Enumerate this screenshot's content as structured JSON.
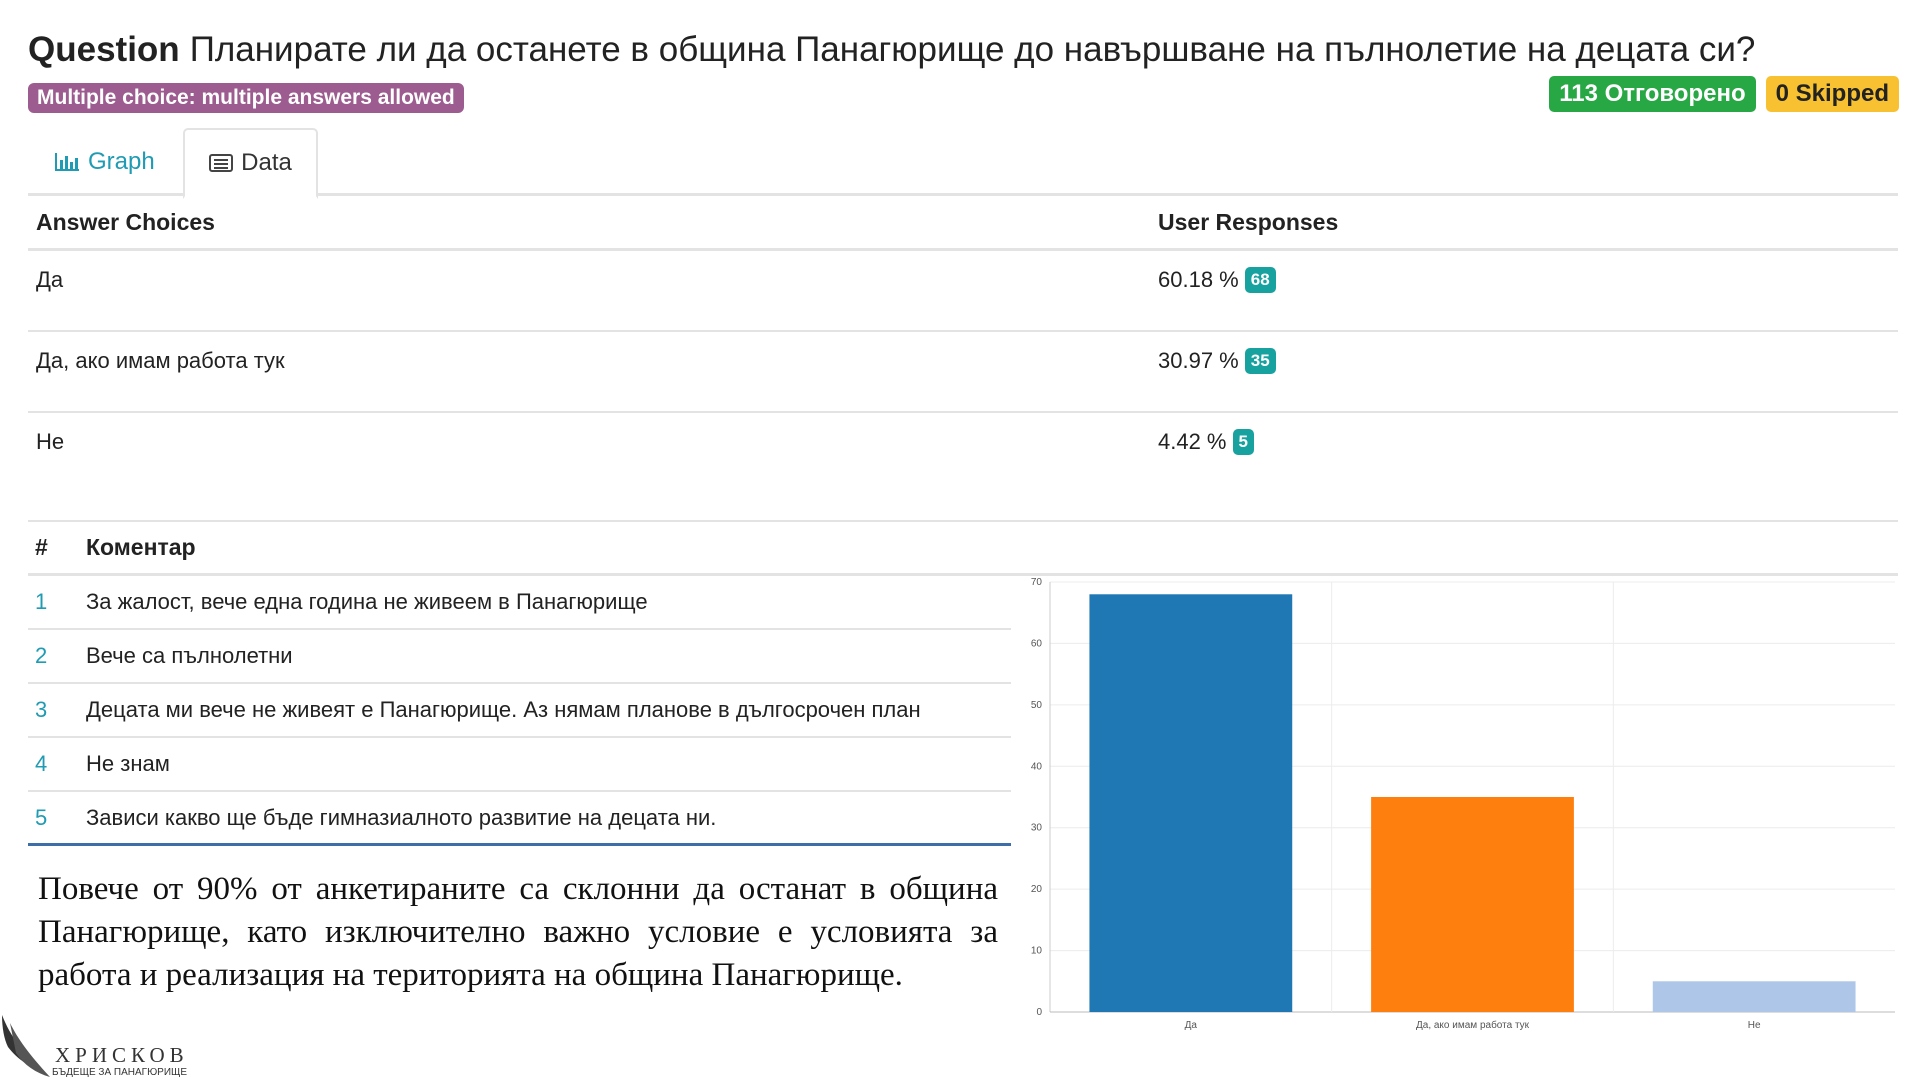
{
  "question": {
    "label": "Question",
    "text": "Планирате ли да останете в община Панагюрище до навършване на пълнолетие на децата си?",
    "type_badge": "Multiple choice: multiple answers allowed",
    "answered": "113 Отговорено",
    "skipped": "0 Skipped"
  },
  "tabs": [
    {
      "label": "Graph",
      "icon": "bar-chart-icon"
    },
    {
      "label": "Data",
      "icon": "list-icon"
    }
  ],
  "answers": {
    "header_choice": "Answer Choices",
    "header_responses": "User Responses",
    "rows": [
      {
        "choice": "Да",
        "percent": "60.18 %",
        "count": "68"
      },
      {
        "choice": "Да, ако имам работа тук",
        "percent": "30.97 %",
        "count": "35"
      },
      {
        "choice": "Не",
        "percent": "4.42 %",
        "count": "5"
      }
    ]
  },
  "comments": {
    "header_num": "#",
    "header_text": "Коментар",
    "rows": [
      {
        "num": "1",
        "text": "За жалост, вече една година не живеем в Панагюрище"
      },
      {
        "num": "2",
        "text": "Вече са пълнолетни"
      },
      {
        "num": "3",
        "text": "Децата ми вече не живеят е Панагюрище. Аз нямам планове в дългосрочен план"
      },
      {
        "num": "4",
        "text": "Не знам"
      },
      {
        "num": "5",
        "text": "Зависи какво ще бъде гимназиалното развитие на децата ни."
      }
    ]
  },
  "summary": "Повече от 90% от анкетираните са склонни да останат в община Панагюрище, като изключително важно условие е условията за работа и реализация на територията на община Панагюрище.",
  "logo": {
    "name": "ХРИСКОВ",
    "tagline": "БЪДЕЩЕ ЗА ПАНАГЮРИЩЕ"
  },
  "colors": {
    "accent": "#1f9bb3",
    "answered": "#28a745",
    "skipped": "#f8c131",
    "type_badge": "#9c5c8f",
    "count_badge": "#17a2a0"
  },
  "chart_data": {
    "type": "bar",
    "categories": [
      "Да",
      "Да, ако имам работа тук",
      "Не"
    ],
    "values": [
      68,
      35,
      5
    ],
    "colors": [
      "#1f77b4",
      "#ff7f0e",
      "#aec7e8"
    ],
    "yticks": [
      "0",
      "10",
      "20",
      "30",
      "40",
      "50",
      "60",
      "70"
    ],
    "ylim": [
      0,
      70
    ],
    "grid": true
  }
}
